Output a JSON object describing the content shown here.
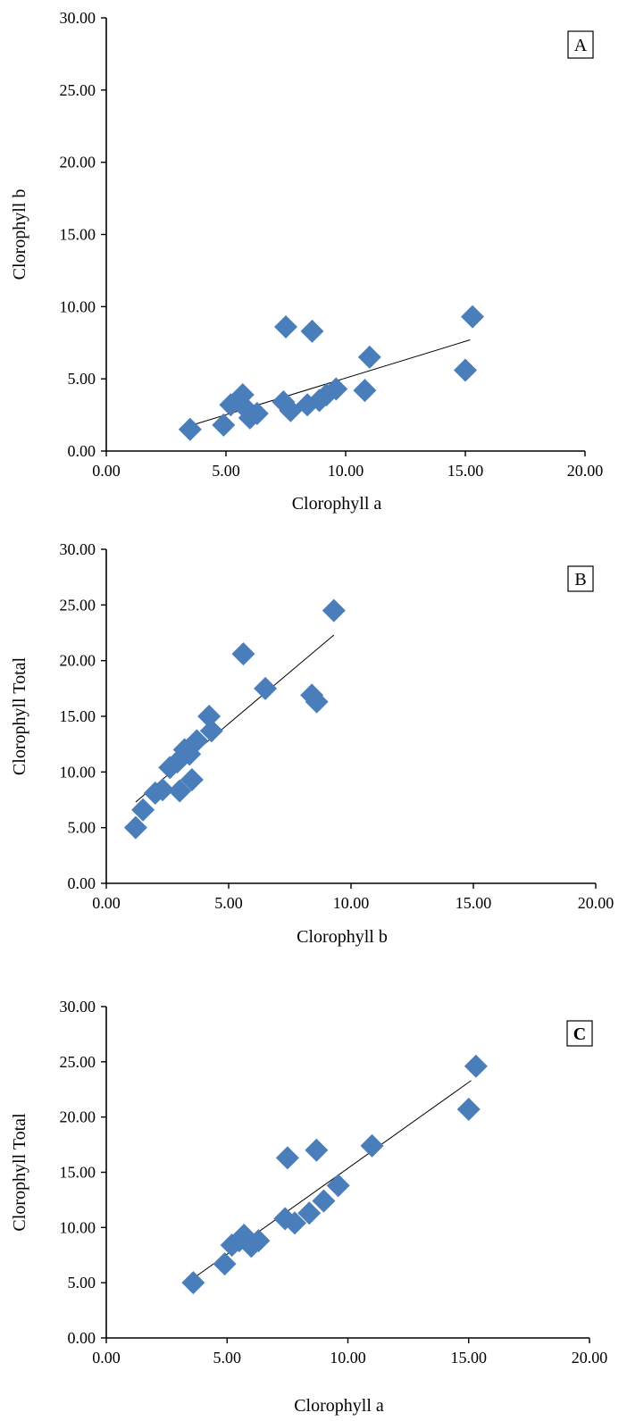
{
  "colors": {
    "marker": "#4a7ebb",
    "axis": "#000000",
    "trend": "#000000"
  },
  "chart_data": [
    {
      "type": "scatter",
      "panel_label": "A",
      "xlabel": "Clorophyll  a",
      "ylabel": "Clorophyll  b",
      "xlim": [
        0,
        20
      ],
      "ylim": [
        0,
        30
      ],
      "x_ticks": [
        "0.00",
        "5.00",
        "10.00",
        "15.00",
        "20.00"
      ],
      "y_ticks": [
        "0.00",
        "5.00",
        "10.00",
        "15.00",
        "20.00",
        "25.00",
        "30.00"
      ],
      "grid": false,
      "points": [
        [
          3.5,
          1.5
        ],
        [
          4.9,
          1.8
        ],
        [
          5.2,
          3.2
        ],
        [
          5.5,
          3.5
        ],
        [
          5.7,
          3.9
        ],
        [
          5.8,
          3.0
        ],
        [
          6.0,
          2.3
        ],
        [
          6.3,
          2.6
        ],
        [
          7.4,
          3.4
        ],
        [
          7.5,
          8.6
        ],
        [
          7.7,
          2.8
        ],
        [
          8.4,
          3.2
        ],
        [
          8.6,
          8.3
        ],
        [
          8.9,
          3.5
        ],
        [
          9.2,
          3.9
        ],
        [
          9.6,
          4.3
        ],
        [
          10.8,
          4.2
        ],
        [
          11.0,
          6.5
        ],
        [
          15.0,
          5.6
        ],
        [
          15.3,
          9.3
        ]
      ],
      "trendline": [
        [
          3.6,
          1.8
        ],
        [
          15.2,
          7.7
        ]
      ]
    },
    {
      "type": "scatter",
      "panel_label": "B",
      "xlabel": "Clorophyll  b",
      "ylabel": "Clorophyll  Total",
      "xlim": [
        0,
        20
      ],
      "ylim": [
        0,
        30
      ],
      "x_ticks": [
        "0.00",
        "5.00",
        "10.00",
        "15.00",
        "20.00"
      ],
      "y_ticks": [
        "0.00",
        "5.00",
        "10.00",
        "15.00",
        "20.00",
        "25.00",
        "30.00"
      ],
      "grid": false,
      "points": [
        [
          1.2,
          5.0
        ],
        [
          1.5,
          6.6
        ],
        [
          2.0,
          8.1
        ],
        [
          2.3,
          8.4
        ],
        [
          2.6,
          10.4
        ],
        [
          2.9,
          10.9
        ],
        [
          3.0,
          8.3
        ],
        [
          3.2,
          12.0
        ],
        [
          3.4,
          11.6
        ],
        [
          3.5,
          9.3
        ],
        [
          3.7,
          12.8
        ],
        [
          4.2,
          15.0
        ],
        [
          4.3,
          13.7
        ],
        [
          5.6,
          20.6
        ],
        [
          6.5,
          17.5
        ],
        [
          8.4,
          16.9
        ],
        [
          8.6,
          16.3
        ],
        [
          9.3,
          24.5
        ]
      ],
      "trendline": [
        [
          1.2,
          7.3
        ],
        [
          9.3,
          22.3
        ]
      ]
    },
    {
      "type": "scatter",
      "panel_label": "C",
      "xlabel": "Clorophyll  a",
      "ylabel": "Clorophyll  Total",
      "xlim": [
        0,
        20
      ],
      "ylim": [
        0,
        30
      ],
      "x_ticks": [
        "0.00",
        "5.00",
        "10.00",
        "15.00",
        "20.00"
      ],
      "y_ticks": [
        "0.00",
        "5.00",
        "10.00",
        "15.00",
        "20.00",
        "25.00",
        "30.00"
      ],
      "grid": false,
      "points": [
        [
          3.6,
          5.0
        ],
        [
          4.9,
          6.7
        ],
        [
          5.2,
          8.4
        ],
        [
          5.5,
          8.8
        ],
        [
          5.7,
          9.3
        ],
        [
          6.0,
          8.3
        ],
        [
          6.3,
          8.8
        ],
        [
          7.4,
          10.8
        ],
        [
          7.5,
          16.3
        ],
        [
          7.8,
          10.4
        ],
        [
          8.4,
          11.3
        ],
        [
          8.7,
          17.0
        ],
        [
          9.0,
          12.4
        ],
        [
          9.6,
          13.8
        ],
        [
          11.0,
          17.4
        ],
        [
          15.0,
          20.7
        ],
        [
          15.3,
          24.6
        ]
      ],
      "trendline": [
        [
          3.6,
          5.4
        ],
        [
          15.1,
          23.3
        ]
      ]
    }
  ]
}
